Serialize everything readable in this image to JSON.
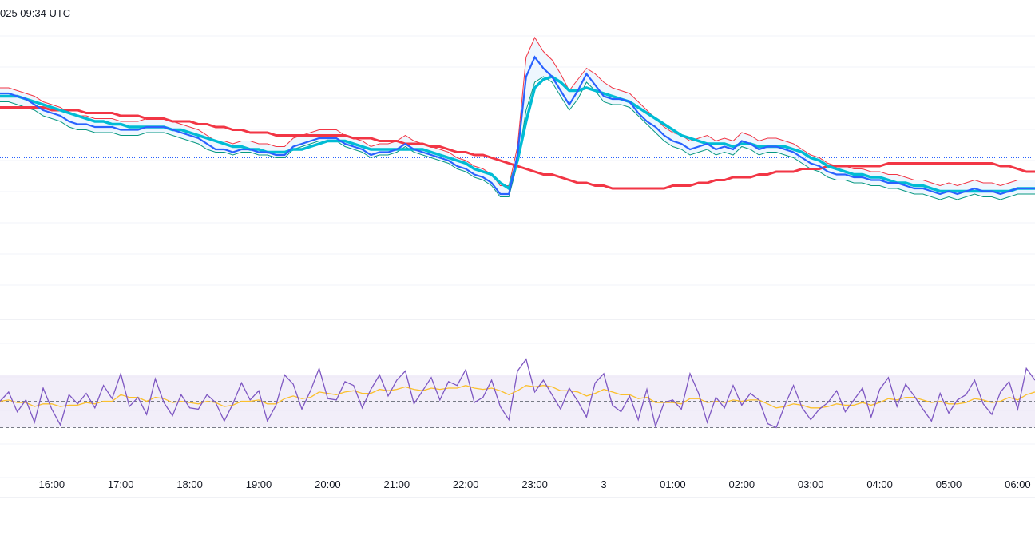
{
  "header": {
    "timestamp": "025 09:34 UTC"
  },
  "colors": {
    "price": "#2962ff",
    "ma_fast": "#00bcd4",
    "ma_slow": "#f23645",
    "band_upper": "#f23645",
    "band_lower": "#089981",
    "band_fill": "#e3f2fd",
    "rsi": "#7e57c2",
    "rsi_ma": "#fbc02d",
    "rsi_band": "#ede7f6",
    "grid": "#f0f3fa",
    "axis_text": "#131722"
  },
  "chart_data": [
    {
      "type": "line",
      "panel": "price",
      "grid": true,
      "legend": "none",
      "y_range": [
        0,
        100
      ],
      "x_range": [
        0,
        120
      ],
      "series": [
        {
          "values": [
            78,
            78,
            77,
            76,
            74,
            72,
            71,
            70,
            68,
            67,
            67,
            66,
            66,
            66,
            65,
            65,
            65,
            66,
            66,
            66,
            65,
            64,
            63,
            62,
            60,
            58,
            58,
            57,
            58,
            58,
            57,
            57,
            56,
            56,
            59,
            60,
            61,
            62,
            62,
            62,
            60,
            59,
            58,
            56,
            57,
            57,
            58,
            60,
            58,
            57,
            56,
            55,
            54,
            52,
            51,
            49,
            48,
            46,
            42,
            42,
            56,
            84,
            91,
            87,
            84,
            79,
            74,
            79,
            85,
            81,
            77,
            76,
            76,
            75,
            71,
            68,
            66,
            63,
            61,
            60,
            58,
            59,
            60,
            58,
            59,
            58,
            61,
            60,
            58,
            59,
            59,
            58,
            57,
            55,
            53,
            52,
            50,
            49,
            49,
            48,
            48,
            47,
            47,
            46,
            46,
            45,
            44,
            44,
            43,
            42,
            43,
            42,
            43,
            44,
            43,
            43,
            42,
            43,
            44,
            44,
            44
          ]
        },
        {
          "values": [
            77,
            77,
            77,
            76,
            75,
            74,
            73,
            72,
            71,
            70,
            69,
            68,
            68,
            67,
            67,
            66,
            66,
            66,
            66,
            66,
            65,
            65,
            64,
            63,
            62,
            61,
            60,
            59,
            59,
            58,
            58,
            57,
            57,
            57,
            58,
            58,
            59,
            60,
            61,
            61,
            61,
            60,
            59,
            58,
            58,
            58,
            58,
            58,
            58,
            58,
            57,
            56,
            55,
            54,
            53,
            51,
            50,
            49,
            46,
            44,
            54,
            68,
            80,
            83,
            84,
            82,
            79,
            79,
            80,
            79,
            78,
            77,
            76,
            75,
            73,
            71,
            69,
            67,
            65,
            63,
            62,
            61,
            60,
            60,
            60,
            59,
            60,
            60,
            59,
            59,
            59,
            59,
            58,
            57,
            55,
            54,
            52,
            51,
            50,
            49,
            49,
            48,
            48,
            47,
            46,
            46,
            45,
            45,
            44,
            43,
            43,
            43,
            43,
            43,
            43,
            43,
            43,
            43,
            44,
            44,
            44
          ]
        },
        {
          "values": [
            73,
            73,
            73,
            73,
            73,
            73,
            72,
            72,
            72,
            72,
            71,
            71,
            71,
            71,
            70,
            70,
            70,
            69,
            69,
            69,
            68,
            68,
            68,
            67,
            67,
            66,
            66,
            65,
            65,
            64,
            64,
            64,
            63,
            63,
            63,
            63,
            63,
            63,
            63,
            63,
            63,
            62,
            62,
            62,
            61,
            61,
            61,
            60,
            60,
            60,
            59,
            59,
            58,
            57,
            57,
            56,
            56,
            55,
            54,
            53,
            52,
            51,
            50,
            49,
            49,
            48,
            47,
            46,
            46,
            45,
            45,
            44,
            44,
            44,
            44,
            44,
            44,
            44,
            45,
            45,
            45,
            46,
            46,
            47,
            47,
            48,
            48,
            48,
            49,
            49,
            50,
            50,
            50,
            51,
            51,
            51,
            52,
            52,
            52,
            52,
            52,
            52,
            52,
            53,
            53,
            53,
            53,
            53,
            53,
            53,
            53,
            53,
            53,
            53,
            53,
            53,
            52,
            52,
            51,
            50,
            50
          ]
        },
        {
          "values": [
            80,
            80,
            79,
            78,
            77,
            75,
            74,
            73,
            71,
            70,
            70,
            69,
            69,
            69,
            68,
            68,
            68,
            69,
            69,
            69,
            68,
            67,
            66,
            65,
            63,
            61,
            61,
            60,
            61,
            61,
            60,
            60,
            59,
            59,
            62,
            63,
            64,
            65,
            65,
            65,
            63,
            62,
            61,
            59,
            60,
            60,
            61,
            63,
            61,
            60,
            59,
            58,
            57,
            55,
            54,
            52,
            51,
            49,
            45,
            45,
            59,
            91,
            98,
            93,
            90,
            85,
            79,
            83,
            87,
            85,
            82,
            80,
            79,
            78,
            75,
            72,
            69,
            66,
            64,
            63,
            61,
            62,
            63,
            61,
            62,
            61,
            64,
            63,
            61,
            62,
            62,
            61,
            60,
            58,
            56,
            55,
            53,
            52,
            52,
            51,
            51,
            50,
            50,
            49,
            49,
            48,
            47,
            47,
            46,
            45,
            46,
            45,
            46,
            47,
            46,
            46,
            45,
            46,
            47,
            47,
            47
          ]
        },
        {
          "values": [
            75,
            75,
            74,
            73,
            72,
            70,
            69,
            68,
            66,
            65,
            65,
            64,
            64,
            64,
            63,
            63,
            63,
            64,
            64,
            64,
            63,
            62,
            61,
            60,
            58,
            57,
            57,
            56,
            57,
            57,
            56,
            56,
            55,
            55,
            58,
            59,
            60,
            61,
            61,
            61,
            59,
            58,
            57,
            55,
            56,
            56,
            57,
            59,
            57,
            56,
            55,
            54,
            53,
            51,
            50,
            48,
            47,
            45,
            41,
            41,
            53,
            72,
            82,
            84,
            82,
            77,
            72,
            76,
            82,
            79,
            75,
            74,
            74,
            73,
            70,
            67,
            64,
            61,
            59,
            58,
            56,
            57,
            58,
            56,
            57,
            56,
            59,
            58,
            56,
            57,
            57,
            56,
            55,
            53,
            51,
            50,
            48,
            47,
            47,
            46,
            46,
            45,
            45,
            44,
            44,
            43,
            42,
            42,
            41,
            40,
            41,
            40,
            41,
            42,
            41,
            41,
            40,
            41,
            42,
            42,
            42
          ]
        }
      ],
      "reference_line": 55
    },
    {
      "type": "line",
      "panel": "oscillator",
      "grid": true,
      "legend": "none",
      "y_range": [
        0,
        100
      ],
      "x_range": [
        0,
        120
      ],
      "reference_levels": [
        70,
        50,
        30
      ],
      "series": [
        {
          "values": [
            50,
            57,
            42,
            51,
            34,
            60,
            44,
            32,
            55,
            48,
            56,
            45,
            62,
            52,
            71,
            46,
            53,
            40,
            67,
            49,
            39,
            55,
            45,
            44,
            55,
            49,
            35,
            48,
            64,
            51,
            58,
            35,
            47,
            70,
            63,
            44,
            58,
            75,
            52,
            51,
            65,
            62,
            45,
            59,
            70,
            54,
            66,
            73,
            48,
            58,
            68,
            51,
            65,
            62,
            74,
            49,
            53,
            66,
            46,
            36,
            73,
            82,
            57,
            66,
            55,
            44,
            60,
            50,
            38,
            64,
            71,
            47,
            42,
            54,
            36,
            59,
            31,
            49,
            51,
            44,
            71,
            56,
            34,
            53,
            45,
            62,
            47,
            56,
            51,
            33,
            30,
            47,
            62,
            45,
            36,
            44,
            49,
            58,
            42,
            51,
            60,
            38,
            59,
            68,
            46,
            63,
            54,
            44,
            35,
            56,
            41,
            51,
            55,
            66,
            48,
            40,
            57,
            65,
            44,
            75,
            66
          ]
        },
        {
          "values": [
            50,
            51,
            49,
            49,
            46,
            48,
            48,
            46,
            47,
            47,
            49,
            48,
            50,
            50,
            55,
            53,
            53,
            50,
            53,
            52,
            49,
            50,
            49,
            48,
            50,
            49,
            46,
            47,
            50,
            50,
            51,
            48,
            48,
            52,
            54,
            52,
            53,
            57,
            56,
            55,
            57,
            58,
            56,
            56,
            59,
            58,
            59,
            61,
            59,
            58,
            60,
            59,
            60,
            60,
            62,
            60,
            59,
            60,
            58,
            55,
            58,
            62,
            61,
            62,
            61,
            58,
            58,
            57,
            54,
            56,
            59,
            57,
            55,
            55,
            52,
            53,
            49,
            49,
            49,
            48,
            52,
            52,
            49,
            50,
            49,
            51,
            50,
            51,
            51,
            48,
            45,
            46,
            48,
            47,
            45,
            45,
            46,
            48,
            47,
            47,
            49,
            47,
            49,
            52,
            51,
            53,
            53,
            51,
            49,
            50,
            48,
            48,
            49,
            52,
            51,
            49,
            50,
            53,
            51,
            55,
            57
          ]
        }
      ]
    }
  ],
  "xaxis": {
    "tick_labels": [
      "16:00",
      "17:00",
      "18:00",
      "19:00",
      "20:00",
      "21:00",
      "22:00",
      "23:00",
      "3",
      "01:00",
      "02:00",
      "03:00",
      "04:00",
      "05:00",
      "06:00"
    ],
    "tick_positions": [
      6,
      14,
      22,
      30,
      38,
      46,
      54,
      62,
      70,
      78,
      86,
      94,
      102,
      110,
      118
    ]
  }
}
